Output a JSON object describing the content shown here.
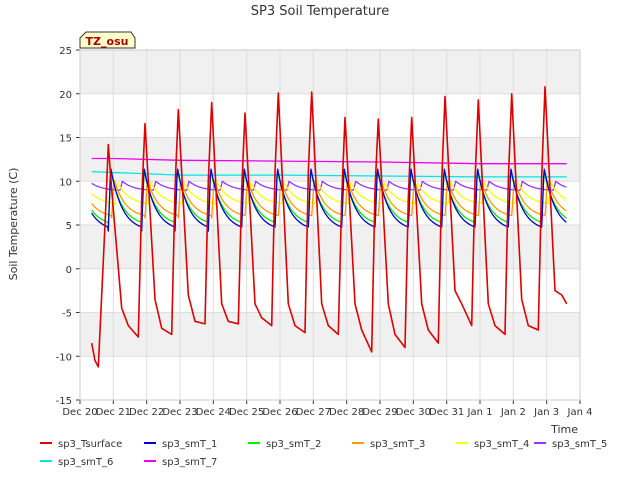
{
  "chart_data": {
    "type": "line",
    "title": "SP3 Soil Temperature",
    "xlabel": "Time",
    "ylabel": "Soil Temperature (C)",
    "site_label": "TZ_osu",
    "ylim": [
      -15,
      25
    ],
    "yticks": [
      -15,
      -10,
      -5,
      0,
      5,
      10,
      15,
      20,
      25
    ],
    "xlim_days": [
      0,
      15
    ],
    "xticks": [
      "Dec 20",
      "Dec 21",
      "Dec 22",
      "Dec 23",
      "Dec 24",
      "Dec 25",
      "Dec 26",
      "Dec 27",
      "Dec 28",
      "Dec 29",
      "Dec 30",
      "Dec 31",
      "Jan 1",
      "Jan 2",
      "Jan 3",
      "Jan 4"
    ],
    "grid": true,
    "legend_position": "bottom",
    "series": [
      {
        "name": "sp3_Tsurface",
        "color": "#dd0000",
        "x": [
          0.35,
          0.45,
          0.55,
          0.75,
          0.85,
          0.95,
          1.25,
          1.45,
          1.75,
          1.85,
          1.95,
          2.25,
          2.45,
          2.75,
          2.85,
          2.95,
          3.25,
          3.45,
          3.75,
          3.85,
          3.95,
          4.25,
          4.45,
          4.75,
          4.85,
          4.95,
          5.25,
          5.45,
          5.75,
          5.85,
          5.95,
          6.25,
          6.45,
          6.75,
          6.85,
          6.95,
          7.25,
          7.45,
          7.75,
          7.85,
          7.95,
          8.25,
          8.45,
          8.75,
          8.85,
          8.95,
          9.25,
          9.45,
          9.75,
          9.85,
          9.95,
          10.25,
          10.45,
          10.75,
          10.85,
          10.95,
          11.25,
          11.45,
          11.75,
          11.85,
          11.95,
          12.25,
          12.45,
          12.75,
          12.85,
          12.95,
          13.25,
          13.45,
          13.75,
          13.85,
          13.95,
          14.25,
          14.45,
          14.6
        ],
        "y": [
          -8.5,
          -10.5,
          -11.2,
          5.0,
          14.2,
          9.0,
          -4.5,
          -6.5,
          -7.8,
          8.0,
          16.6,
          -3.5,
          -6.8,
          -7.5,
          9.0,
          18.2,
          -3.0,
          -6.0,
          -6.3,
          10.0,
          19.0,
          -4.0,
          -6.0,
          -6.3,
          9.0,
          17.8,
          -4.0,
          -5.6,
          -6.5,
          11.0,
          20.1,
          -4.0,
          -6.5,
          -7.3,
          11.0,
          20.2,
          -4.0,
          -6.5,
          -7.5,
          8.0,
          17.3,
          -4.0,
          -7.0,
          -9.5,
          9.0,
          17.1,
          -4.0,
          -7.5,
          -9.0,
          8.0,
          17.3,
          -4.0,
          -7.0,
          -8.5,
          10.0,
          19.7,
          -2.5,
          -4.0,
          -6.5,
          10.0,
          19.3,
          -4.0,
          -6.5,
          -7.5,
          10.0,
          20.0,
          -3.5,
          -6.5,
          -7.0,
          10.5,
          20.8,
          -2.5,
          -3.0,
          -4.0
        ]
      },
      {
        "name": "sp3_smT_1",
        "color": "#0000cc",
        "phase": 0.85,
        "base": 4.3,
        "amp": 7.3
      },
      {
        "name": "sp3_smT_2",
        "color": "#00ee00",
        "phase": 0.85,
        "base": 4.9,
        "amp": 6.4
      },
      {
        "name": "sp3_smT_3",
        "color": "#ff9900",
        "phase": 0.95,
        "base": 5.8,
        "amp": 4.4
      },
      {
        "name": "sp3_smT_4",
        "color": "#ffff00",
        "phase": 1.05,
        "base": 7.3,
        "amp": 2.6
      },
      {
        "name": "sp3_smT_5",
        "color": "#9933ff",
        "phase": 1.2,
        "base": 8.9,
        "amp": 1.1
      },
      {
        "name": "sp3_smT_6",
        "color": "#00e6e6",
        "x": [
          0.35,
          1.0,
          3.0,
          6.0,
          9.0,
          12.0,
          14.6
        ],
        "y": [
          11.1,
          11.0,
          10.7,
          10.7,
          10.6,
          10.5,
          10.5
        ]
      },
      {
        "name": "sp3_smT_7",
        "color": "#ee00ee",
        "x": [
          0.35,
          1.0,
          3.0,
          6.0,
          9.0,
          12.0,
          14.6
        ],
        "y": [
          12.6,
          12.6,
          12.4,
          12.3,
          12.2,
          12.0,
          12.0
        ]
      }
    ]
  }
}
